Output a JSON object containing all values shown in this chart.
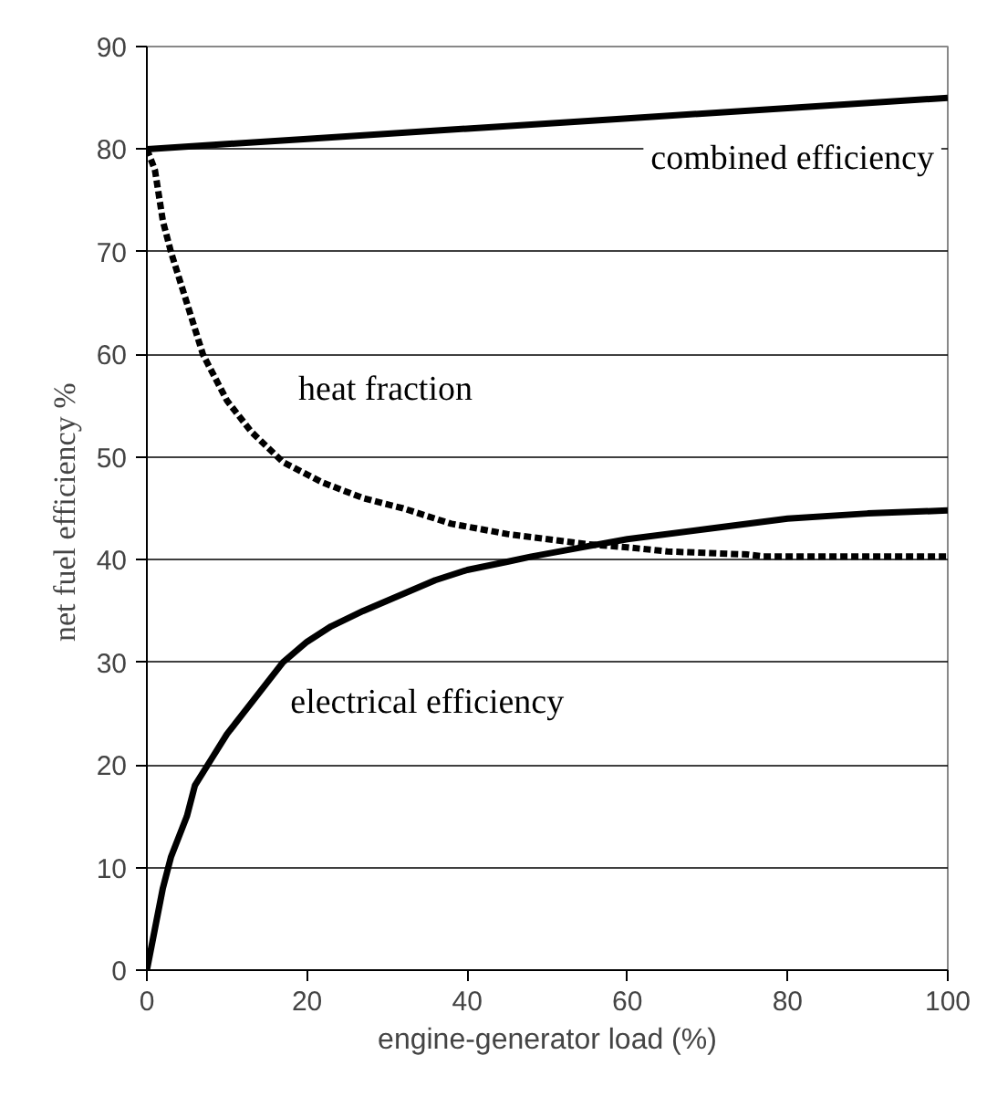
{
  "chart_data": {
    "type": "line",
    "xlabel": "engine-generator load (%)",
    "ylabel": "net fuel efficiency  %",
    "xlim": [
      0,
      100
    ],
    "ylim": [
      0,
      90
    ],
    "xticks": [
      0,
      20,
      40,
      60,
      80,
      100
    ],
    "yticks": [
      0,
      10,
      20,
      30,
      40,
      50,
      60,
      70,
      80,
      90
    ],
    "grid": "y",
    "legend": false,
    "marker": "none",
    "series": [
      {
        "name": "combined efficiency",
        "color": "#000000",
        "line_style": "solid",
        "x": [
          0,
          20,
          40,
          60,
          80,
          100
        ],
        "values": [
          80,
          81,
          82,
          83,
          84,
          85
        ]
      },
      {
        "name": "heat fraction",
        "color": "#000000",
        "line_style": "dashed",
        "x": [
          0,
          1,
          2,
          3,
          5,
          7,
          10,
          13,
          17,
          22,
          27,
          32,
          38,
          45,
          55,
          60,
          65,
          75,
          77,
          100
        ],
        "values": [
          80,
          78,
          73,
          70,
          65,
          60,
          55.5,
          52.5,
          49.5,
          47.5,
          46,
          45,
          43.5,
          42.5,
          41.5,
          41.2,
          40.8,
          40.5,
          40.3,
          40.3
        ]
      },
      {
        "name": "electrical efficiency",
        "color": "#000000",
        "line_style": "solid",
        "x": [
          0,
          1,
          2,
          3,
          5,
          6,
          8,
          10,
          12,
          15,
          17,
          20,
          23,
          27,
          30,
          33,
          36,
          40,
          45,
          48,
          55,
          60,
          70,
          80,
          90,
          100
        ],
        "values": [
          0,
          4,
          8,
          11,
          15,
          18,
          20.5,
          23,
          25,
          28,
          30,
          32,
          33.5,
          35,
          36,
          37,
          38,
          39,
          39.8,
          40.3,
          41.3,
          42,
          43,
          44,
          44.5,
          44.8
        ]
      }
    ]
  }
}
